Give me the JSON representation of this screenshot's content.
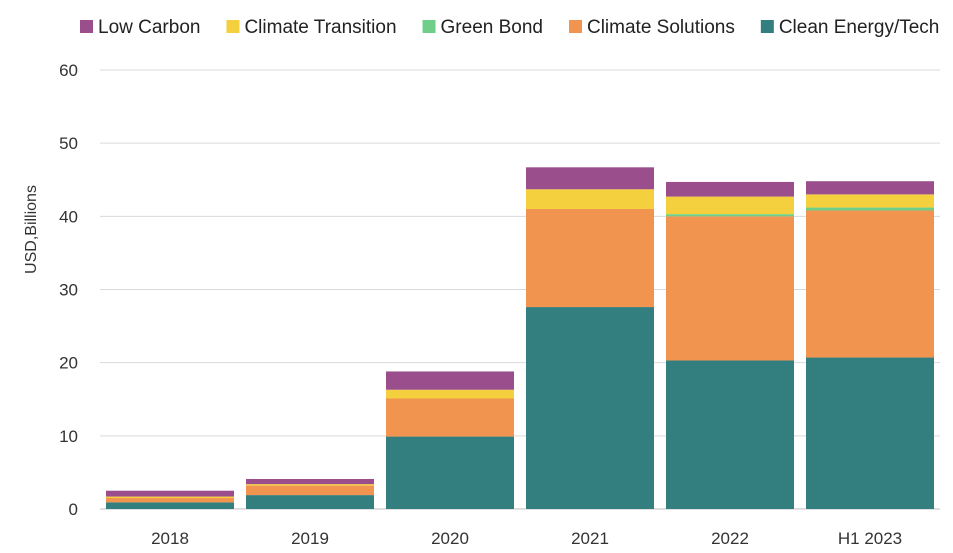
{
  "chart_data": {
    "type": "bar",
    "stacked": true,
    "categories": [
      "2018",
      "2019",
      "2020",
      "2021",
      "2022",
      "H1 2023"
    ],
    "ylabel": "USD,Billions",
    "xlabel": "",
    "title": "",
    "ylim": [
      0,
      60
    ],
    "yticks": [
      0,
      10,
      20,
      30,
      40,
      50,
      60
    ],
    "grid": true,
    "legend_position": "top",
    "series": [
      {
        "name": "Clean Energy/Tech",
        "color": "#337f7f",
        "values": [
          0.9,
          1.9,
          9.9,
          27.6,
          20.3,
          20.7
        ]
      },
      {
        "name": "Climate Solutions",
        "color": "#f0944f",
        "values": [
          0.6,
          1.3,
          5.2,
          13.4,
          19.7,
          20.1
        ]
      },
      {
        "name": "Green Bond",
        "color": "#6fcf8a",
        "values": [
          0.0,
          0.0,
          0.0,
          0.0,
          0.3,
          0.4
        ]
      },
      {
        "name": "Climate Transition",
        "color": "#f4d03f",
        "values": [
          0.2,
          0.2,
          1.2,
          2.7,
          2.4,
          1.8
        ]
      },
      {
        "name": "Low Carbon",
        "color": "#9a4e8c",
        "values": [
          0.8,
          0.7,
          2.5,
          3.0,
          2.0,
          1.8
        ]
      }
    ],
    "legend_order": [
      "Low Carbon",
      "Climate Transition",
      "Green Bond",
      "Climate Solutions",
      "Clean Energy/Tech"
    ]
  }
}
